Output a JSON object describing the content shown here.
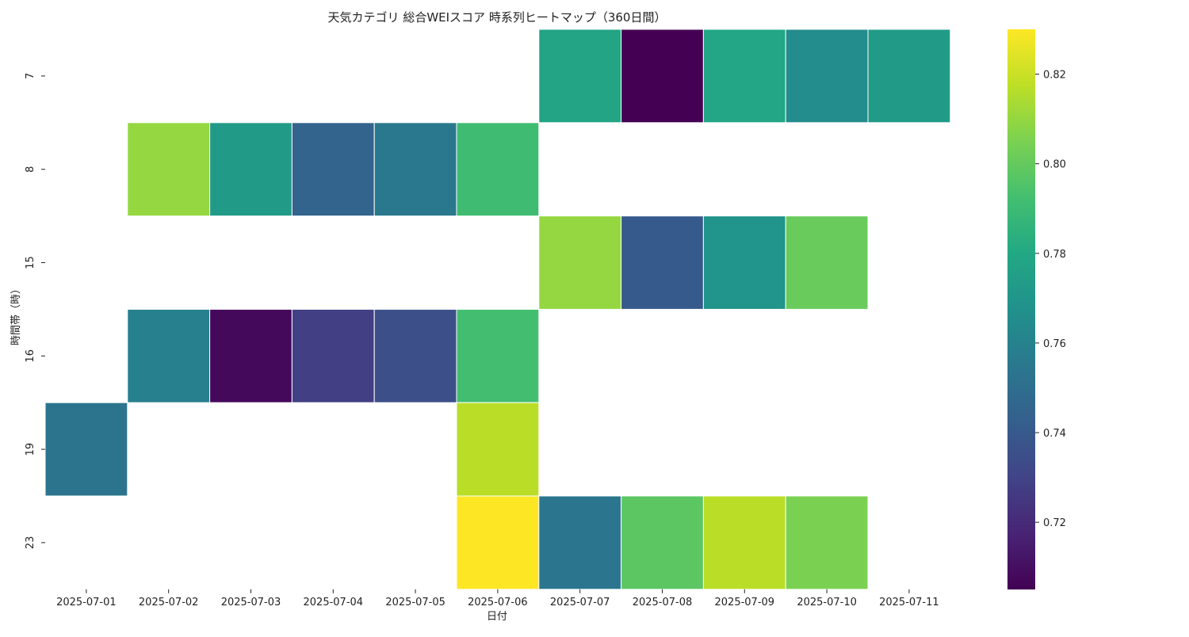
{
  "chart_data": {
    "type": "heatmap",
    "title": "天気カテゴリ 総合WEIスコア 時系列ヒートマップ（360日間）",
    "xlabel": "日付",
    "ylabel": "時間帯（時）",
    "x_categories": [
      "2025-07-01",
      "2025-07-02",
      "2025-07-03",
      "2025-07-04",
      "2025-07-05",
      "2025-07-06",
      "2025-07-07",
      "2025-07-08",
      "2025-07-09",
      "2025-07-10",
      "2025-07-11"
    ],
    "y_categories": [
      "7",
      "8",
      "15",
      "16",
      "19",
      "23"
    ],
    "values": [
      [
        null,
        null,
        null,
        null,
        null,
        null,
        0.778,
        0.705,
        0.779,
        0.765,
        0.773
      ],
      [
        null,
        0.81,
        0.773,
        0.745,
        0.755,
        0.791,
        null,
        null,
        null,
        null,
        null
      ],
      [
        null,
        null,
        null,
        null,
        null,
        null,
        0.81,
        0.74,
        0.769,
        0.801,
        null
      ],
      [
        null,
        0.759,
        0.708,
        0.728,
        0.735,
        0.792,
        null,
        null,
        null,
        null,
        null
      ],
      [
        0.753,
        null,
        null,
        null,
        null,
        0.817,
        null,
        null,
        null,
        null,
        null
      ],
      [
        null,
        null,
        null,
        null,
        null,
        0.83,
        0.754,
        0.798,
        0.817,
        0.805,
        null
      ]
    ],
    "colormap": "viridis",
    "colorbar": {
      "min": 0.705,
      "max": 0.83,
      "ticks": [
        "0.72",
        "0.74",
        "0.76",
        "0.78",
        "0.80",
        "0.82"
      ]
    },
    "grid": false,
    "cell_border_color": "#ffffff"
  }
}
